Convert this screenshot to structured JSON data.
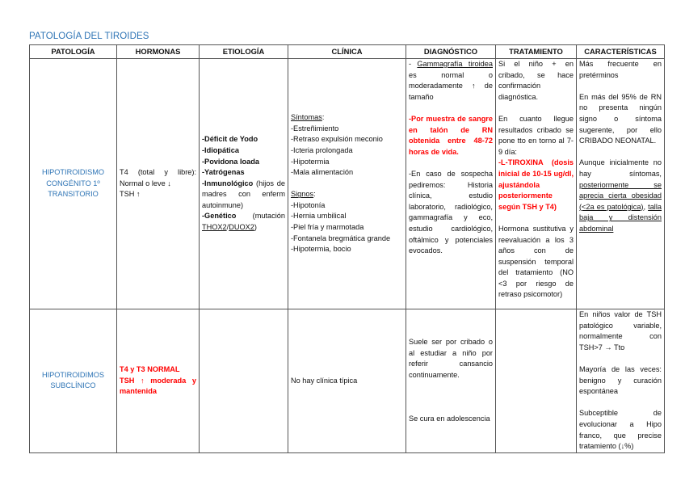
{
  "title": "PATOLOGÍA DEL TIROIDES",
  "colors": {
    "title": "#2e74b5",
    "pathology": "#2e74b5",
    "highlight": "#ff0000"
  },
  "headers": [
    "PATOLOGÍA",
    "HORMONAS",
    "ETIOLOGÍA",
    "CLÍNICA",
    "DIAGNÓSTICO",
    "TRATAMIENTO",
    "CARACTERÍSTICAS"
  ],
  "rows": [
    {
      "cells": [
        {
          "align": "center",
          "paras": [
            [
              {
                "t": "HIPOTIROIDISMO CONGÉNITO 1º TRANSITORIO",
                "c": "blue"
              }
            ]
          ]
        },
        {
          "paras": [
            [
              {
                "t": "T4 (total y libre): Normal o leve ↓"
              }
            ],
            [
              {
                "t": "TSH ↑"
              }
            ]
          ]
        },
        {
          "paras": [
            [
              {
                "t": "-Déficit de Yodo",
                "b": 1
              }
            ],
            [
              {
                "t": "-Idiopática",
                "b": 1
              }
            ],
            [
              {
                "t": "-Povidona Ioada",
                "b": 1
              }
            ],
            [
              {
                "t": "-Yatrógenas",
                "b": 1
              }
            ],
            [
              {
                "t": "-Inmunológico",
                "b": 1
              },
              {
                "t": " (hijos de madres con enferm autoinmune)"
              }
            ],
            [
              {
                "t": "-Genético",
                "b": 1
              },
              {
                "t": " (mutación "
              },
              {
                "t": "THOX2",
                "u": 1
              },
              {
                "t": "/"
              },
              {
                "t": "DUOX2",
                "u": 1
              },
              {
                "t": ")"
              }
            ]
          ]
        },
        {
          "paras": [
            [
              {
                "t": "Síntomas",
                "u": 1
              },
              {
                "t": ":"
              }
            ],
            [
              {
                "t": "-Estreñimiento"
              }
            ],
            [
              {
                "t": "-Retraso expulsión meconio"
              }
            ],
            [
              {
                "t": "-Icteria prolongada"
              }
            ],
            [
              {
                "t": "-Hipotermia"
              }
            ],
            [
              {
                "t": "-Mala alimentación"
              }
            ],
            [],
            [
              {
                "t": "Signos",
                "u": 1
              },
              {
                "t": ":"
              }
            ],
            [
              {
                "t": "-Hipotonía"
              }
            ],
            [
              {
                "t": "-Hernia umbilical"
              }
            ],
            [
              {
                "t": "-Piel fría y marmotada"
              }
            ],
            [
              {
                "t": "-Fontanela bregmática grande"
              }
            ],
            [
              {
                "t": "-Hipotermia, bocio"
              }
            ]
          ]
        },
        {
          "valign": "top",
          "paras": [
            [
              {
                "t": "- "
              },
              {
                "t": "Gammagrafía tiroidea",
                "u": 1
              },
              {
                "t": " es normal o moderadamente ↑ de tamaño"
              }
            ],
            [],
            [
              {
                "t": "-Por muestra de sangre en talón de RN obtenida entre 48-72 horas de vida.",
                "b": 1,
                "c": "red"
              }
            ],
            [],
            [
              {
                "t": "-En caso de sospecha pediremos: Historia clínica, estudio laboratorio, radiológico, gammagrafía y eco, estudio cardiológico, oftálmico y potenciales evocados."
              }
            ]
          ]
        },
        {
          "valign": "top",
          "paras": [
            [
              {
                "t": "Si el niño + en cribado, se hace confirmación diagnóstica."
              }
            ],
            [],
            [
              {
                "t": "En cuanto llegue resultados cribado se pone tto en torno al 7-9 día:"
              }
            ],
            [
              {
                "t": "-L-TIROXINA (dosis inicial de 10-15 ug/dl, ajustándola posteriormente según TSH y T4)",
                "b": 1,
                "c": "red"
              }
            ],
            [],
            [
              {
                "t": "Hormona sustitutiva y reevaluación a los 3 años con de suspensión temporal del tratamiento (NO <3 por riesgo de retraso psicomotor)"
              }
            ]
          ]
        },
        {
          "valign": "top",
          "paras": [
            [
              {
                "t": "Más frecuente en pretérminos"
              }
            ],
            [],
            [
              {
                "t": "En más del 95% de RN no presenta ningún signo o síntoma sugerente, por ello CRIBADO NEONATAL."
              }
            ],
            [],
            [
              {
                "t": "Aunque inicialmente no hay síntomas, "
              },
              {
                "t": "posteriormente se aprecia cierta obesidad (<2a es patológica)",
                "u": 1
              },
              {
                "t": ", "
              },
              {
                "t": "talla baja y distensión abdominal",
                "u": 1
              }
            ]
          ]
        }
      ]
    },
    {
      "cells": [
        {
          "align": "center",
          "paras": [
            [
              {
                "t": "HIPOTIROIDIMOS SUBCLÍNICO",
                "c": "blue"
              }
            ]
          ]
        },
        {
          "paras": [
            [
              {
                "t": "T4 y T3 NORMAL",
                "b": 1,
                "c": "red"
              }
            ],
            [
              {
                "t": "TSH ↑ moderada y mantenida",
                "b": 1,
                "c": "red"
              }
            ]
          ]
        },
        {
          "paras": []
        },
        {
          "paras": [
            [
              {
                "t": "No hay clínica típica"
              }
            ]
          ]
        },
        {
          "paras": [
            [
              {
                "t": "Suele ser por cribado o al estudiar a niño por referir cansancio continuamente."
              }
            ],
            [],
            [],
            [],
            [
              {
                "t": "Se cura en adolescencia"
              }
            ]
          ]
        },
        {
          "paras": []
        },
        {
          "paras": [
            [
              {
                "t": "En niños valor de TSH patológico variable, normalmente con TSH>7 → Tto"
              }
            ],
            [],
            [
              {
                "t": "Mayoría de las veces: benigno y curación espontánea"
              }
            ],
            [],
            [
              {
                "t": "Subceptible de evolucionar a Hipo franco, que precise tratamiento (↓%)"
              }
            ]
          ]
        }
      ]
    }
  ]
}
